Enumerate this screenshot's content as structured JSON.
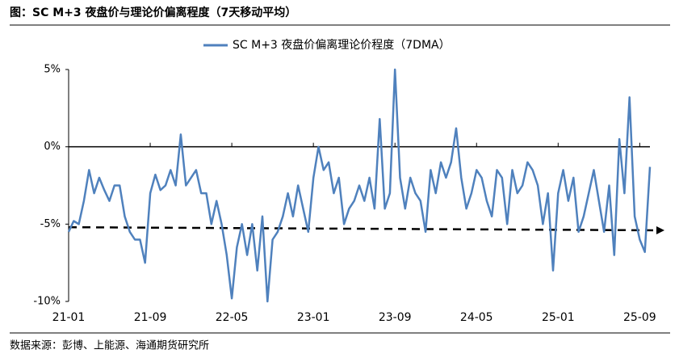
{
  "chart_data": {
    "type": "line",
    "title": "图：SC M+3 夜盘价与理论价偏离程度（7天移动平均）",
    "source": "数据来源：彭博、上能源、海通期货研究所",
    "categories": [
      "21-01",
      null,
      null,
      null,
      null,
      null,
      null,
      null,
      null,
      null,
      null,
      null,
      null,
      null,
      null,
      null,
      "21-09",
      null,
      null,
      null,
      null,
      null,
      null,
      null,
      null,
      null,
      null,
      null,
      null,
      null,
      null,
      null,
      "22-05",
      null,
      null,
      null,
      null,
      null,
      null,
      null,
      null,
      null,
      null,
      null,
      null,
      null,
      null,
      null,
      "23-01",
      null,
      null,
      null,
      null,
      null,
      null,
      null,
      null,
      null,
      null,
      null,
      null,
      null,
      null,
      null,
      "23-09",
      null,
      null,
      null,
      null,
      null,
      null,
      null,
      null,
      null,
      null,
      null,
      null,
      null,
      null,
      null,
      "24-05",
      null,
      null,
      null,
      null,
      null,
      null,
      null,
      null,
      null,
      null,
      null,
      null,
      null,
      null,
      null,
      "25-01",
      null,
      null,
      null,
      null,
      null,
      null,
      null,
      null,
      null,
      null,
      null,
      null,
      null,
      null,
      null,
      "25-09",
      null,
      null
    ],
    "series": [
      {
        "name": "SC M+3 夜盘价偏离理论价程度（7DMA）",
        "color": "#4f81bd",
        "values": [
          -5.5,
          -4.8,
          -5,
          -3.5,
          -1.5,
          -3,
          -2,
          -2.8,
          -3.5,
          -2.5,
          -2.5,
          -4.5,
          -5.5,
          -6,
          -6,
          -7.5,
          -3,
          -1.8,
          -2.8,
          -2.5,
          -1.5,
          -2.5,
          0.8,
          -2.5,
          -2,
          -1.5,
          -3,
          -3,
          -5,
          -3.5,
          -5,
          -7,
          -9.8,
          -6.5,
          -5,
          -7,
          -5,
          -8,
          -4.5,
          -10,
          -6,
          -5.5,
          -4.5,
          -3,
          -4.5,
          -2.5,
          -4,
          -5.5,
          -2,
          0,
          -1.5,
          -1,
          -3,
          -2,
          -5,
          -4,
          -3.5,
          -2.5,
          -3.5,
          -2,
          -4,
          1.8,
          -4,
          -3,
          5,
          -2,
          -4,
          -2,
          -3,
          -3.5,
          -5.5,
          -1.5,
          -3,
          -1,
          -2,
          -1,
          1.2,
          -2,
          -4,
          -3,
          -1.5,
          -2,
          -3.5,
          -4.5,
          -1.5,
          -2,
          -5,
          -1.5,
          -3,
          -2.5,
          -1,
          -1.5,
          -2.5,
          -5,
          -3,
          -8,
          -3,
          -1.5,
          -3.5,
          -2,
          -5.5,
          -4.5,
          -3,
          -1.5,
          -3.5,
          -5.5,
          -2.5,
          -7,
          0.5,
          -3,
          3.2,
          -4.5,
          -6,
          -6.8,
          -1.3
        ]
      }
    ],
    "reference_line": {
      "values": [
        -5.2,
        -5.4
      ],
      "color": "#000000",
      "dashed": true
    },
    "ylim": [
      -10,
      5
    ],
    "yticks": [
      {
        "value": -10,
        "label": "-10%"
      },
      {
        "value": -5,
        "label": "-5%"
      },
      {
        "value": 0,
        "label": "0%"
      },
      {
        "value": 5,
        "label": "5%"
      }
    ]
  }
}
